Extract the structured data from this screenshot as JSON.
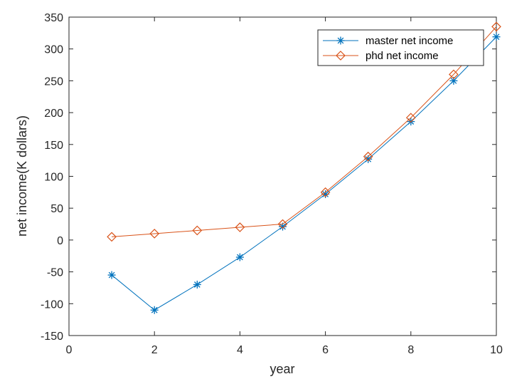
{
  "chart_data": {
    "type": "line",
    "title": "",
    "xlabel": "year",
    "ylabel": "net income(K dollars)",
    "xlim": [
      0,
      10
    ],
    "ylim": [
      -150,
      350
    ],
    "xticks": [
      0,
      2,
      4,
      6,
      8,
      10
    ],
    "xtick_labels": [
      "0",
      "2",
      "4",
      "6",
      "8",
      "10"
    ],
    "yticks": [
      -150,
      -100,
      -50,
      0,
      50,
      100,
      150,
      200,
      250,
      300,
      350
    ],
    "ytick_labels": [
      "-150",
      "-100",
      "-50",
      "0",
      "50",
      "100",
      "150",
      "200",
      "250",
      "300",
      "350"
    ],
    "grid": false,
    "legend_position": "top-right",
    "x": [
      1,
      2,
      3,
      4,
      5,
      6,
      7,
      8,
      9,
      10
    ],
    "series": [
      {
        "name": "master net income",
        "marker": "asterisk",
        "color": "#0072BD",
        "values": [
          -55,
          -110,
          -70,
          -27,
          21,
          72,
          127,
          186,
          250,
          319
        ]
      },
      {
        "name": "phd net income",
        "marker": "diamond",
        "color": "#D95319",
        "values": [
          5,
          10,
          15,
          20,
          25,
          75,
          131,
          192,
          260,
          335
        ]
      }
    ]
  }
}
